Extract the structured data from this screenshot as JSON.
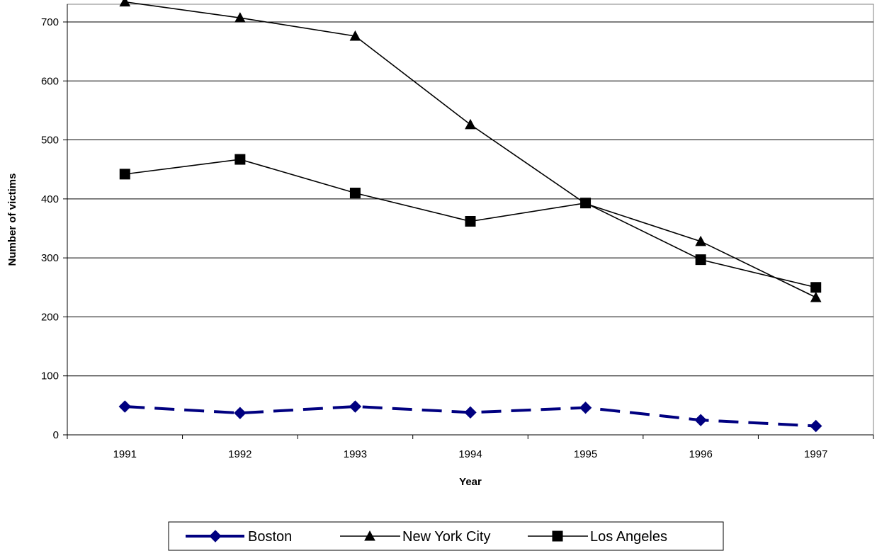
{
  "chart_data": {
    "type": "line",
    "xlabel": "Year",
    "ylabel": "Number of victims",
    "categories": [
      "1991",
      "1992",
      "1993",
      "1994",
      "1995",
      "1996",
      "1997"
    ],
    "yticks": [
      "0",
      "100",
      "200",
      "300",
      "400",
      "500",
      "600",
      "700"
    ],
    "ylim": [
      0,
      730
    ],
    "grid": true,
    "legend_position": "bottom",
    "series": [
      {
        "name": "Boston",
        "values": [
          48,
          37,
          48,
          38,
          46,
          25,
          15
        ],
        "marker": "diamond",
        "line_style": "dashed",
        "color": "#000080"
      },
      {
        "name": "New York City",
        "values": [
          734,
          707,
          676,
          526,
          392,
          328,
          233
        ],
        "marker": "triangle",
        "line_style": "solid",
        "color": "#000000"
      },
      {
        "name": "Los Angeles",
        "values": [
          442,
          467,
          410,
          362,
          393,
          297,
          250
        ],
        "marker": "square",
        "line_style": "solid",
        "color": "#000000"
      }
    ]
  }
}
